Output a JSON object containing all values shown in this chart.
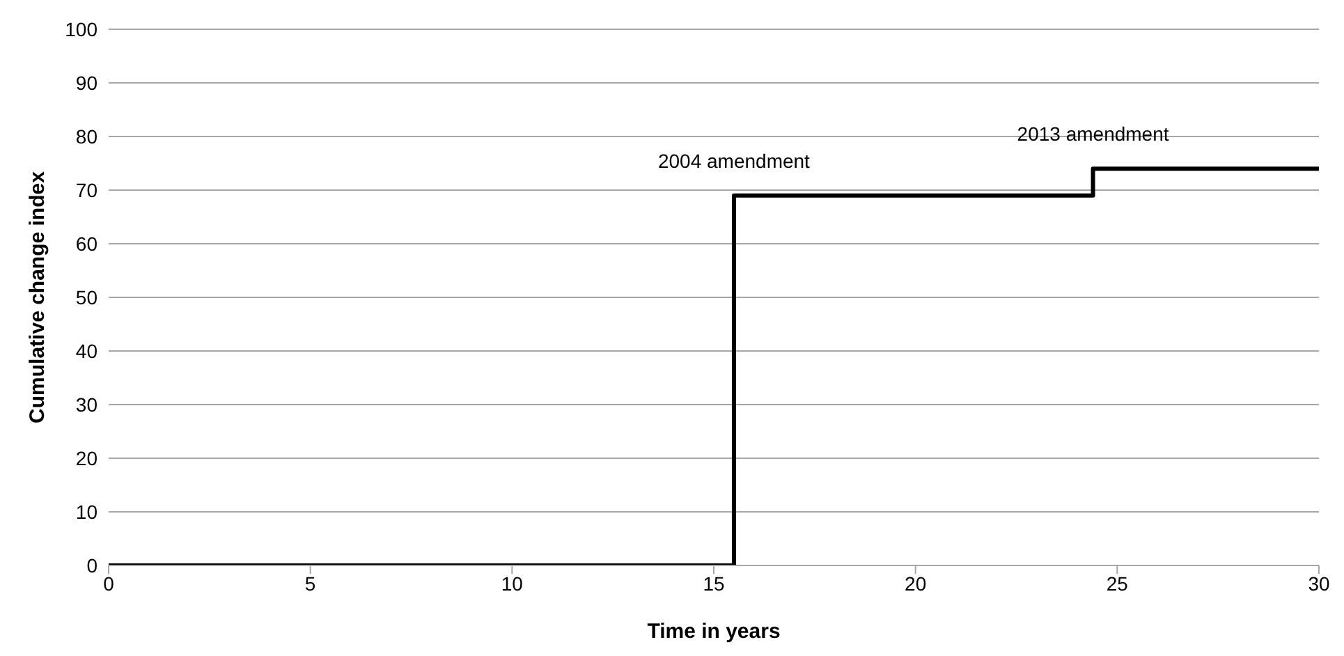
{
  "chart_data": {
    "type": "step",
    "xlabel": "Time in years",
    "ylabel": "Cumulative change index",
    "x": [
      0,
      15.5,
      24.4,
      30
    ],
    "series": [
      {
        "color": "#000000",
        "values": [
          0,
          69,
          74,
          74
        ]
      }
    ],
    "xlim": [
      0,
      30
    ],
    "xticks": [
      0,
      5,
      10,
      15,
      20,
      25,
      30
    ],
    "ylim": [
      0,
      100
    ],
    "yticks": [
      0,
      10,
      20,
      30,
      40,
      50,
      60,
      70,
      80,
      90,
      100
    ],
    "grid": "y",
    "marker": "none",
    "line_style": "solid",
    "annotations": [
      "2004 amendment",
      "2013 amendment"
    ]
  }
}
